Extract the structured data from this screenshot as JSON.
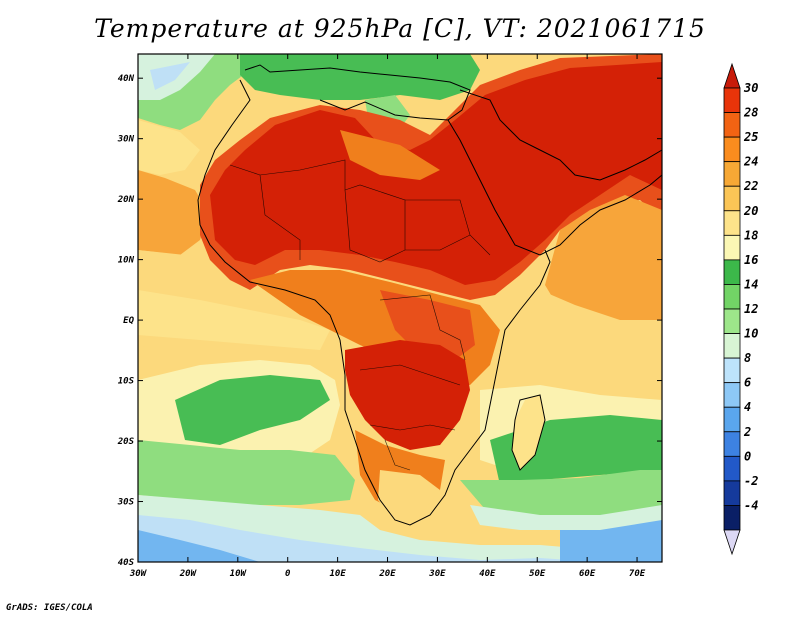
{
  "title": "Temperature at 925hPa [C], VT: 2021061715",
  "footer": "GrADS: IGES/COLA",
  "map": {
    "lon_ticks": [
      "30W",
      "20W",
      "10W",
      "0",
      "10E",
      "20E",
      "30E",
      "40E",
      "50E",
      "60E",
      "70E"
    ],
    "lat_ticks": [
      "40N",
      "30N",
      "20N",
      "10N",
      "EQ",
      "10S",
      "20S",
      "30S",
      "40S"
    ],
    "lon_range": [
      -30,
      75
    ],
    "lat_range": [
      -40,
      44
    ]
  },
  "colorbar": {
    "labels": [
      "30",
      "28",
      "25",
      "24",
      "22",
      "20",
      "18",
      "16",
      "14",
      "12",
      "10",
      "8",
      "6",
      "4",
      "2",
      "0",
      "-2",
      "-4"
    ],
    "colors": [
      "#e8340a",
      "#f26313",
      "#fa8c1e",
      "#f7a835",
      "#fbc556",
      "#fde38a",
      "#fbf7b4",
      "#3cb84a",
      "#72d466",
      "#9de68a",
      "#d8f5d4",
      "#bde3fb",
      "#8dc8f6",
      "#5aa6ee",
      "#3d82e2",
      "#2259c8",
      "#153a9c",
      "#0a1f66"
    ],
    "top_color": "#c81b0a",
    "bottom_color": "#dcd8f4"
  },
  "colors": {
    "hot": "#d42106",
    "warm": "#e8501b",
    "orange": "#f07f1c",
    "amber": "#f7a53a",
    "yellow": "#fcd97c",
    "cream": "#fbf2b0",
    "green": "#48bd54",
    "lightgreen": "#8fdd7f",
    "pale": "#d6f2de",
    "lightblue": "#bfe0f6",
    "blue": "#72b6f0"
  }
}
